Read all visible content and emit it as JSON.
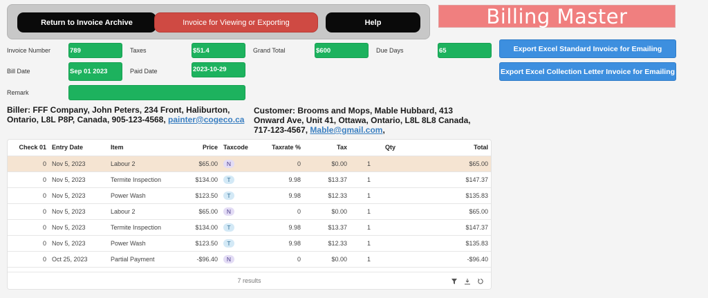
{
  "nav": {
    "return_label": "Return to Invoice Archive",
    "invoice_label": "Invoice for Viewing or Exporting",
    "help_label": "Help"
  },
  "app": {
    "title": "Billing Master"
  },
  "fields": {
    "invoice_number": {
      "label": "Invoice Number",
      "value": "789"
    },
    "taxes": {
      "label": "Taxes",
      "value": "$51.4"
    },
    "grand_total": {
      "label": "Grand Total",
      "value": "$600"
    },
    "due_days": {
      "label": "Due Days",
      "value": "65"
    },
    "bill_date": {
      "label": "Bill Date",
      "value": "Sep 01 2023"
    },
    "paid_date": {
      "label": "Paid Date",
      "value": "2023-10-29"
    },
    "remark": {
      "label": "Remark",
      "value": ""
    }
  },
  "export": {
    "standard_label": "Export Excel Standard Invoice for Emailing",
    "collection_label": "Export Excel Collection Letter Invoice for Emailing"
  },
  "biller": {
    "text": "Biller: FFF Company, John Peters, 234 Front, Haliburton, Ontario, L8L P8P, Canada, 905-123-4568, ",
    "email": "painter@cogeco.ca"
  },
  "customer": {
    "text": "Customer: Brooms and Mops, Mable Hubbard, 413 Onward Ave, Unit 41, Ottawa, Ontario, L8L 8L8 Canada, 717-123-4567, ",
    "email": "Mable@gmail.com",
    "suffix": ","
  },
  "table": {
    "columns": [
      "Check 01",
      "Entry Date",
      "Item",
      "Price",
      "Taxcode",
      "Taxrate %",
      "Tax",
      "Qty",
      "Total"
    ],
    "rows": [
      {
        "check": "0",
        "date": "Nov 5, 2023",
        "item": "Labour 2",
        "price": "$65.00",
        "taxcode": "N",
        "taxrate": "0",
        "tax": "$0.00",
        "qty": "1",
        "total": "$65.00"
      },
      {
        "check": "0",
        "date": "Nov 5, 2023",
        "item": "Termite Inspection",
        "price": "$134.00",
        "taxcode": "T",
        "taxrate": "9.98",
        "tax": "$13.37",
        "qty": "1",
        "total": "$147.37"
      },
      {
        "check": "0",
        "date": "Nov 5, 2023",
        "item": "Power Wash",
        "price": "$123.50",
        "taxcode": "T",
        "taxrate": "9.98",
        "tax": "$12.33",
        "qty": "1",
        "total": "$135.83"
      },
      {
        "check": "0",
        "date": "Nov 5, 2023",
        "item": "Labour 2",
        "price": "$65.00",
        "taxcode": "N",
        "taxrate": "0",
        "tax": "$0.00",
        "qty": "1",
        "total": "$65.00"
      },
      {
        "check": "0",
        "date": "Nov 5, 2023",
        "item": "Termite Inspection",
        "price": "$134.00",
        "taxcode": "T",
        "taxrate": "9.98",
        "tax": "$13.37",
        "qty": "1",
        "total": "$147.37"
      },
      {
        "check": "0",
        "date": "Nov 5, 2023",
        "item": "Power Wash",
        "price": "$123.50",
        "taxcode": "T",
        "taxrate": "9.98",
        "tax": "$12.33",
        "qty": "1",
        "total": "$135.83"
      },
      {
        "check": "0",
        "date": "Oct 25, 2023",
        "item": "Partial Payment",
        "price": "-$96.40",
        "taxcode": "N",
        "taxrate": "0",
        "tax": "$0.00",
        "qty": "1",
        "total": "-$96.40"
      }
    ],
    "results_text": "7 results",
    "footer_icons": [
      "filter-icon",
      "download-icon",
      "refresh-icon"
    ]
  },
  "colors": {
    "field_green": "#1db25e",
    "export_blue": "#3d8fdf",
    "title_pink": "#f07f7f",
    "active_red": "#cf4a43",
    "highlight_row": "#f5e4d2"
  }
}
